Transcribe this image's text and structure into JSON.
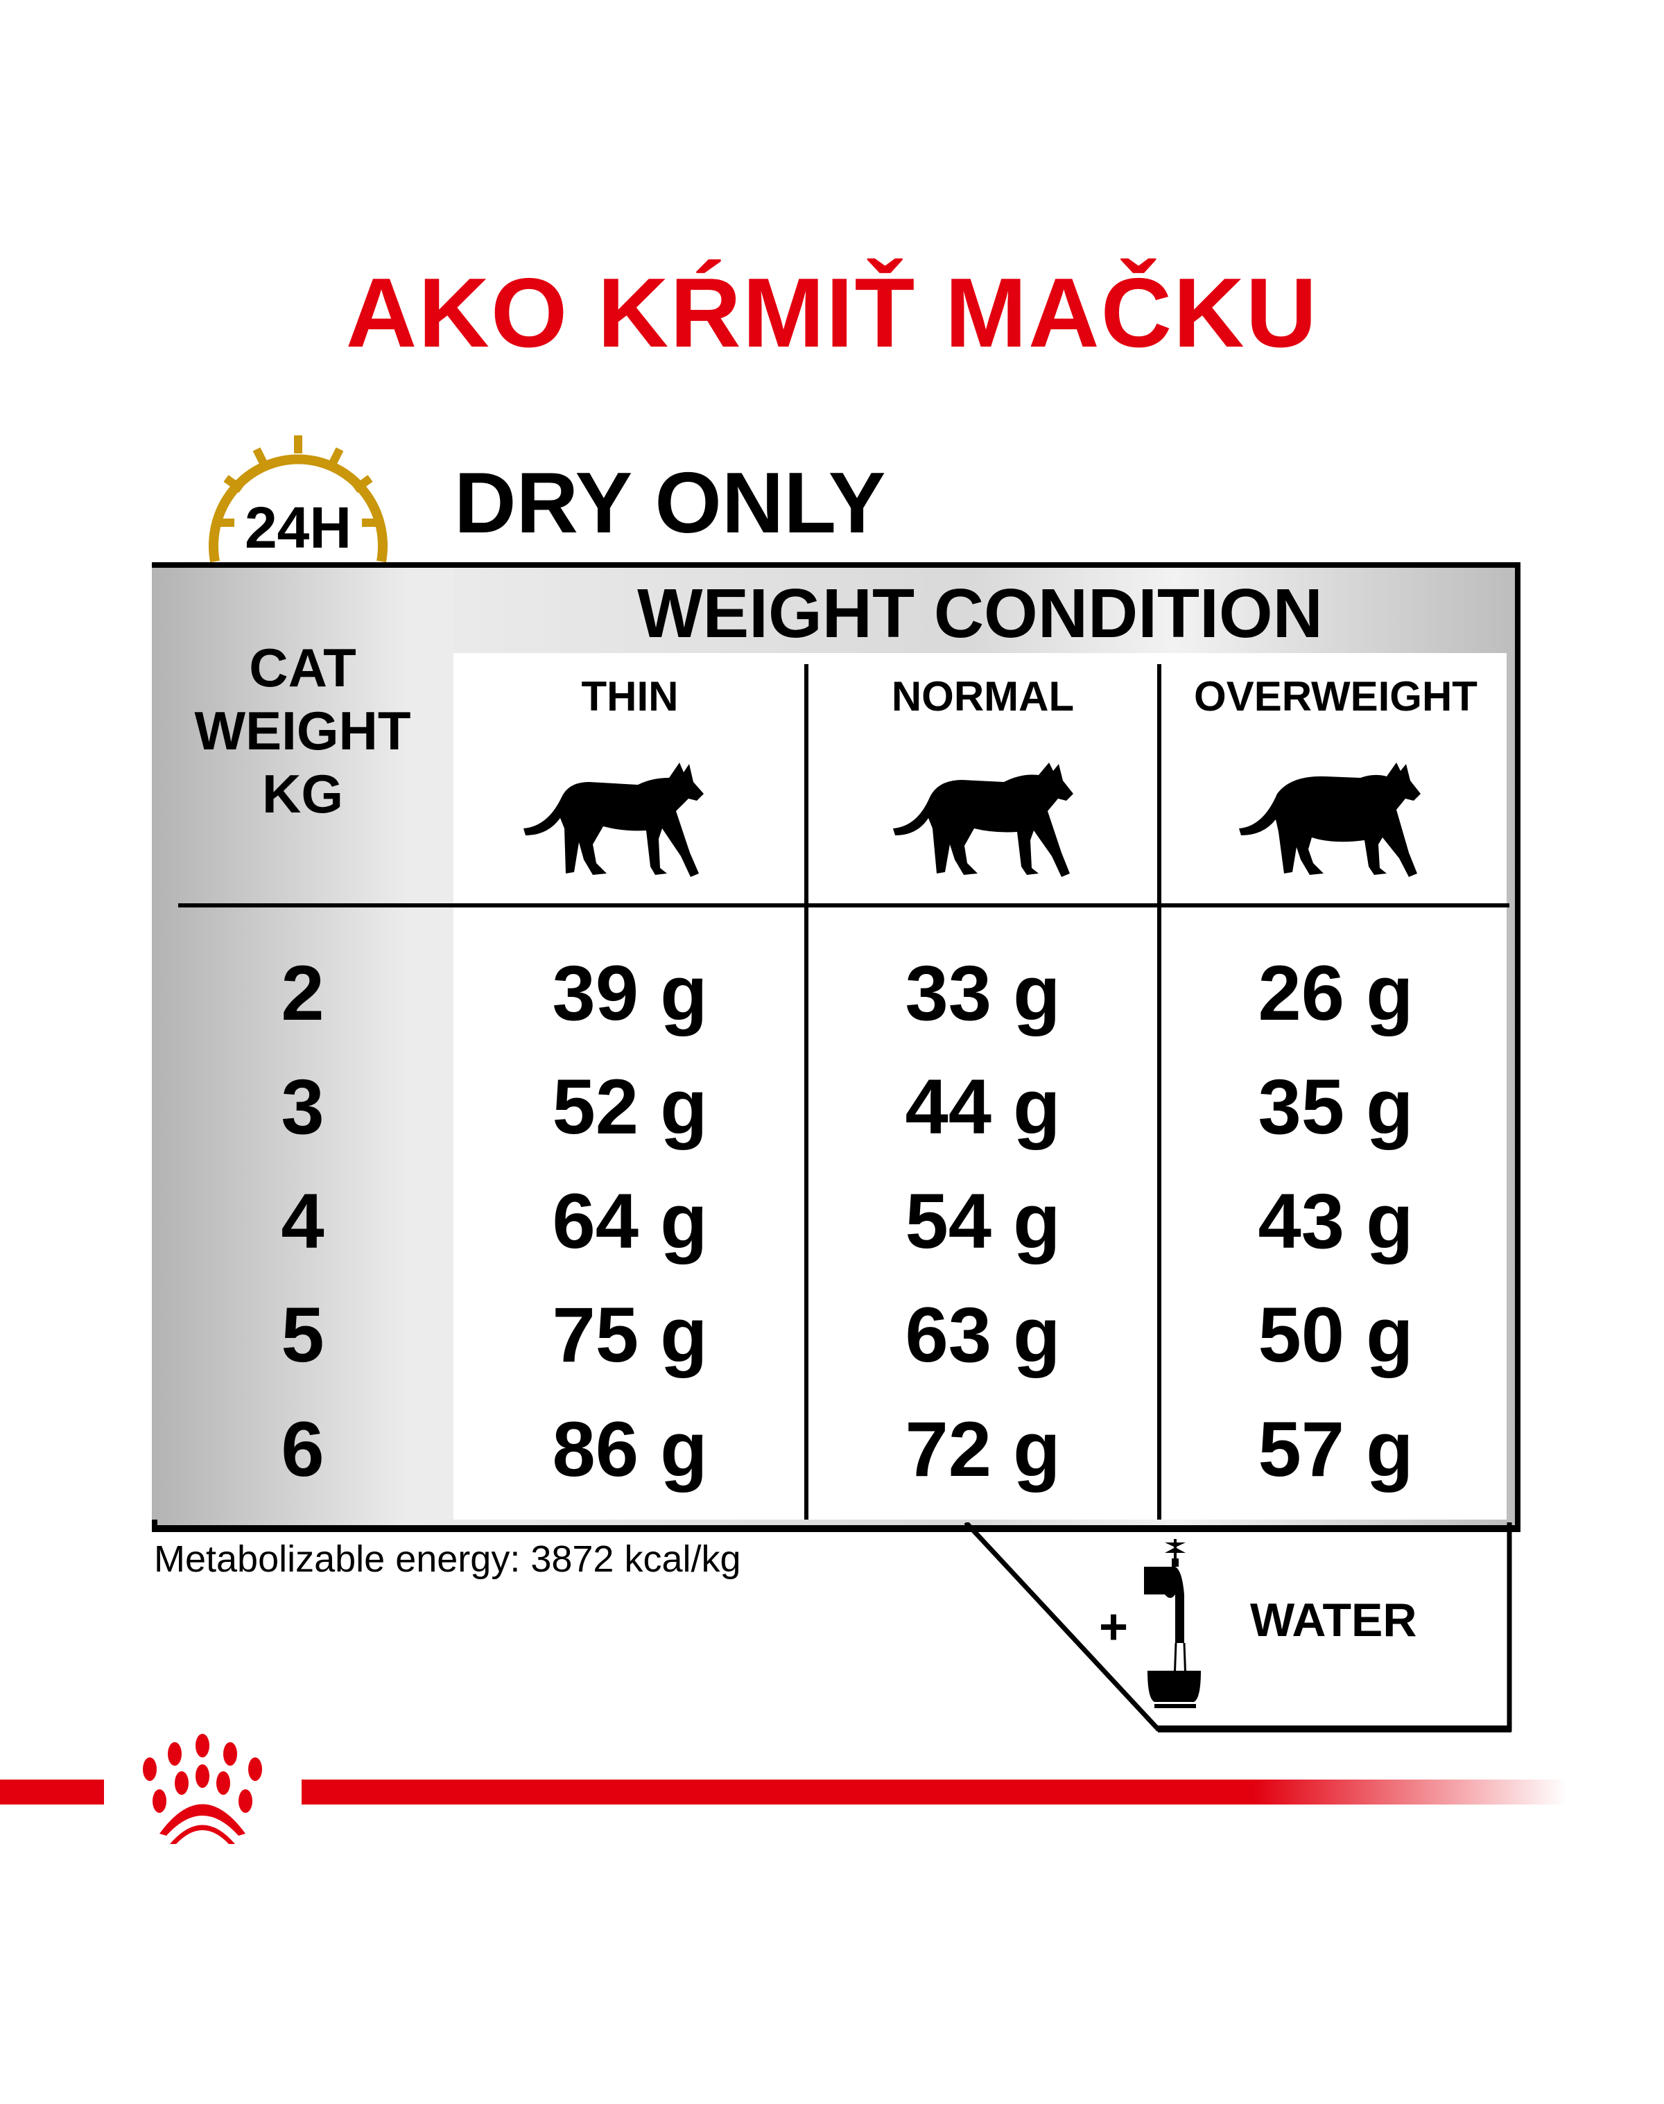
{
  "title": "AKO KŔMIŤ MAČKU",
  "clock_icon": {
    "name": "24h-clock-icon",
    "label": "24H",
    "color": "#c9960c"
  },
  "subtitle": "DRY ONLY",
  "table": {
    "group_header": "WEIGHT CONDITION",
    "row_header": [
      "CAT",
      "WEIGHT",
      "KG"
    ],
    "columns": [
      "THIN",
      "NORMAL",
      "OVERWEIGHT"
    ],
    "rows": [
      {
        "kg": "2",
        "values": [
          "39 g",
          "33 g",
          "26 g"
        ]
      },
      {
        "kg": "3",
        "values": [
          "52 g",
          "44 g",
          "35 g"
        ]
      },
      {
        "kg": "4",
        "values": [
          "64 g",
          "54 g",
          "43 g"
        ]
      },
      {
        "kg": "5",
        "values": [
          "75 g",
          "63 g",
          "50 g"
        ]
      },
      {
        "kg": "6",
        "values": [
          "86 g",
          "72 g",
          "57 g"
        ]
      }
    ]
  },
  "energy": "Metabolizable energy: 3872 kcal/kg",
  "water": {
    "plus": "+",
    "label": "WATER",
    "icon": "water-tap-bowl-icon"
  },
  "brand": {
    "color": "#e2000f",
    "logo": "royal-canin-crown-logo"
  }
}
